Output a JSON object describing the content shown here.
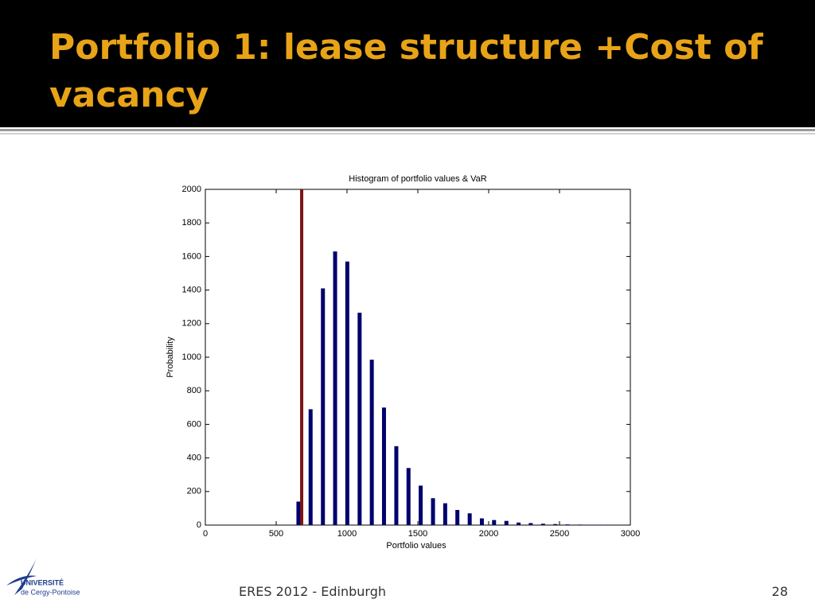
{
  "header": {
    "title": "Portfolio 1: lease structure +Cost of vacancy"
  },
  "chart_data": {
    "type": "bar",
    "title": "Histogram of portfolio values & VaR",
    "x_label": "Portfolio values",
    "y_label": "Probability",
    "x": [
      657,
      743,
      830,
      916,
      1002,
      1089,
      1175,
      1261,
      1348,
      1434,
      1520,
      1607,
      1693,
      1779,
      1866,
      1952,
      2038,
      2125,
      2211,
      2297,
      2384,
      2470,
      2556,
      2642,
      2729,
      2815,
      2901
    ],
    "values": [
      140,
      690,
      1410,
      1630,
      1570,
      1265,
      985,
      700,
      470,
      340,
      235,
      160,
      130,
      90,
      70,
      40,
      30,
      25,
      15,
      12,
      8,
      6,
      4,
      3,
      2,
      2,
      1
    ],
    "color": "#00006e",
    "var_line": {
      "x": 680,
      "color": "#7a1414"
    },
    "xlim": [
      0,
      3000
    ],
    "xticks": [
      0,
      500,
      1000,
      1500,
      2000,
      2500,
      3000
    ],
    "ylim": [
      0,
      2000
    ],
    "yticks": [
      0,
      200,
      400,
      600,
      800,
      1000,
      1200,
      1400,
      1600,
      1800,
      2000
    ]
  },
  "footer": {
    "text": "ERES 2012 - Edinburgh",
    "page": "28"
  },
  "logo": {
    "line1": "UNIVERSITÉ",
    "line2": "de Cergy-Pontoise"
  }
}
